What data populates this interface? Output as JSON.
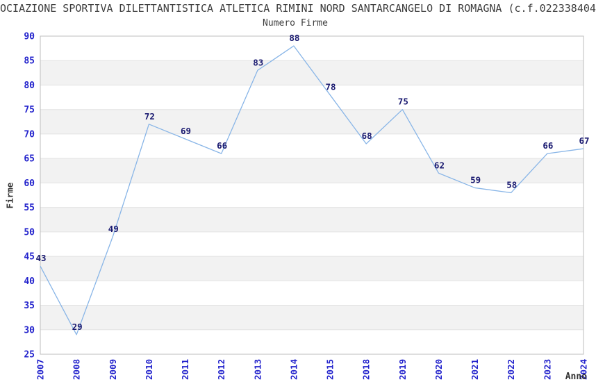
{
  "page": {
    "main_title": "OCIAZIONE SPORTIVA DILETTANTISTICA ATLETICA RIMINI NORD SANTARCANGELO DI ROMAGNA (c.f.022338404"
  },
  "chart_data": {
    "type": "line",
    "title": "Numero Firme",
    "xlabel": "Anno",
    "ylabel": "Firme",
    "categories": [
      "2007",
      "2008",
      "2009",
      "2010",
      "2011",
      "2012",
      "2013",
      "2014",
      "2015",
      "2018",
      "2019",
      "2020",
      "2021",
      "2022",
      "2023",
      "2024"
    ],
    "values": [
      43,
      29,
      49,
      72,
      69,
      66,
      83,
      88,
      78,
      68,
      75,
      62,
      59,
      58,
      66,
      67
    ],
    "ylim": [
      25,
      90
    ],
    "ytick_step": 5,
    "grid": "alternating-horizontal-bands",
    "legend": "none",
    "point_labels_shown": true,
    "colors": {
      "line": "#88b5e7",
      "tick_label": "#2222cc",
      "point_label": "#191970",
      "band": "#f2f2f2",
      "gridline": "#e2e2e2",
      "plot_border": "#bdbdbd",
      "text": "#3d3d3d"
    }
  }
}
